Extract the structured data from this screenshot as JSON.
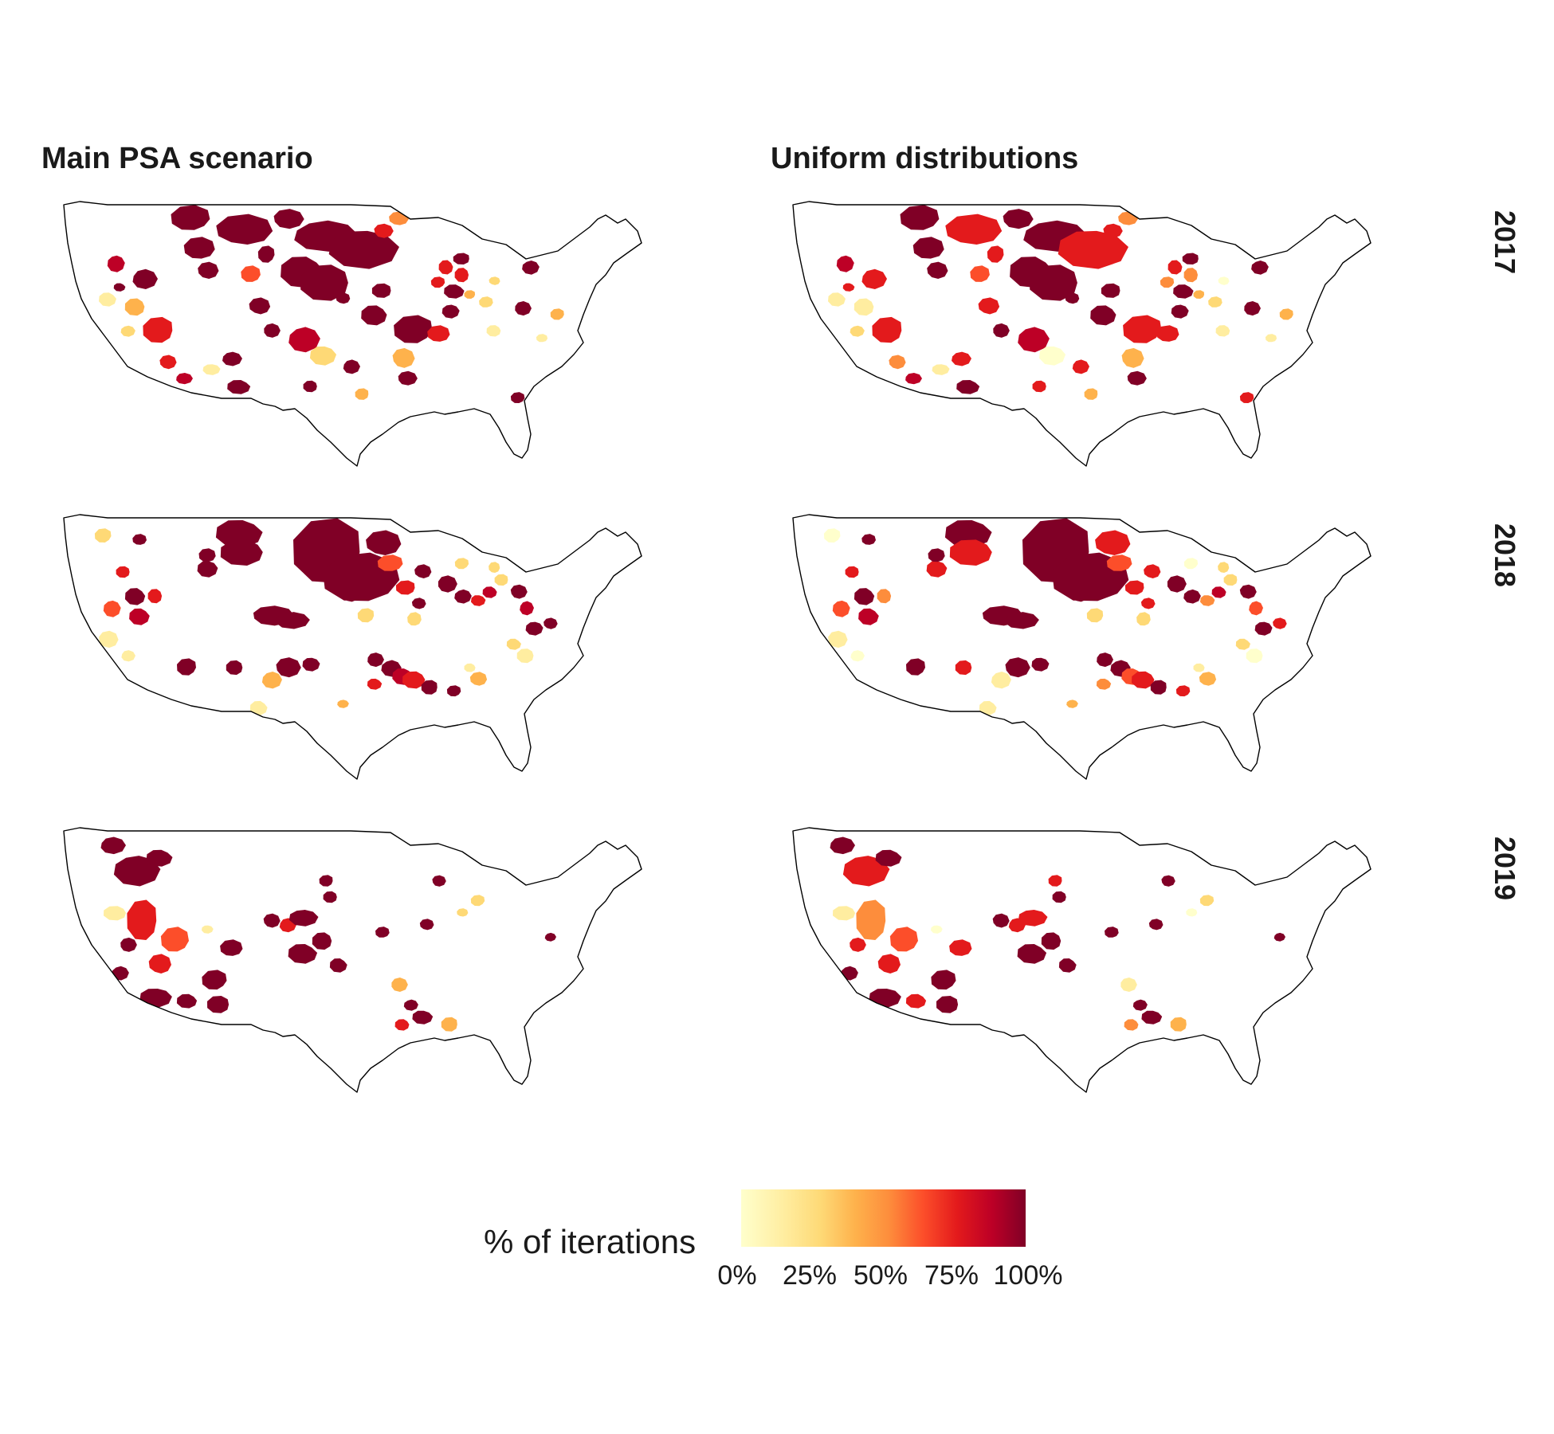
{
  "columns": [
    "Main PSA scenario",
    "Uniform distributions"
  ],
  "rows": [
    "2017",
    "2018",
    "2019"
  ],
  "legend": {
    "title": "% of iterations",
    "ticks": [
      "0%",
      "25%",
      "50%",
      "75%",
      "100%"
    ],
    "colors": [
      "#FFFFCC",
      "#FFEDA0",
      "#FED976",
      "#FEB24C",
      "#FD8D3C",
      "#FC4E2A",
      "#E31A1C",
      "#BD0026",
      "#800026"
    ]
  },
  "panels": [
    {
      "column": "Main PSA scenario",
      "year": "2017"
    },
    {
      "column": "Uniform distributions",
      "year": "2017"
    },
    {
      "column": "Main PSA scenario",
      "year": "2018"
    },
    {
      "column": "Uniform distributions",
      "year": "2018"
    },
    {
      "column": "Main PSA scenario",
      "year": "2019"
    },
    {
      "column": "Uniform distributions",
      "year": "2019"
    }
  ]
}
